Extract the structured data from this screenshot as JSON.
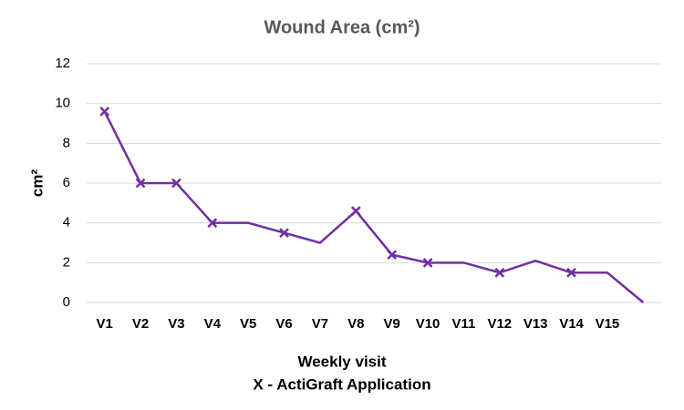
{
  "chart_data": {
    "type": "line",
    "title": "Wound Area (cm²)",
    "y_label": "cm²",
    "x_label": [
      "Weekly visit",
      "X - ActiGraft Application"
    ],
    "categories": [
      "V1",
      "V2",
      "V3",
      "V4",
      "V5",
      "V6",
      "V7",
      "V8",
      "V9",
      "V10",
      "V11",
      "V12",
      "V13",
      "V14",
      "V15",
      null
    ],
    "series": [
      {
        "name": "Wound Area",
        "color": "#7030a0",
        "values": [
          9.6,
          6,
          6,
          4,
          4,
          3.5,
          3,
          4.6,
          2.4,
          2,
          2,
          1.5,
          2.1,
          1.5,
          1.5,
          0
        ],
        "markers": [
          true,
          true,
          true,
          true,
          false,
          true,
          false,
          true,
          true,
          true,
          false,
          true,
          false,
          true,
          false,
          false
        ]
      }
    ],
    "ylim": [
      0,
      12
    ],
    "yticks": [
      0,
      2,
      4,
      6,
      8,
      10,
      12
    ],
    "grid": true,
    "legend": false
  }
}
